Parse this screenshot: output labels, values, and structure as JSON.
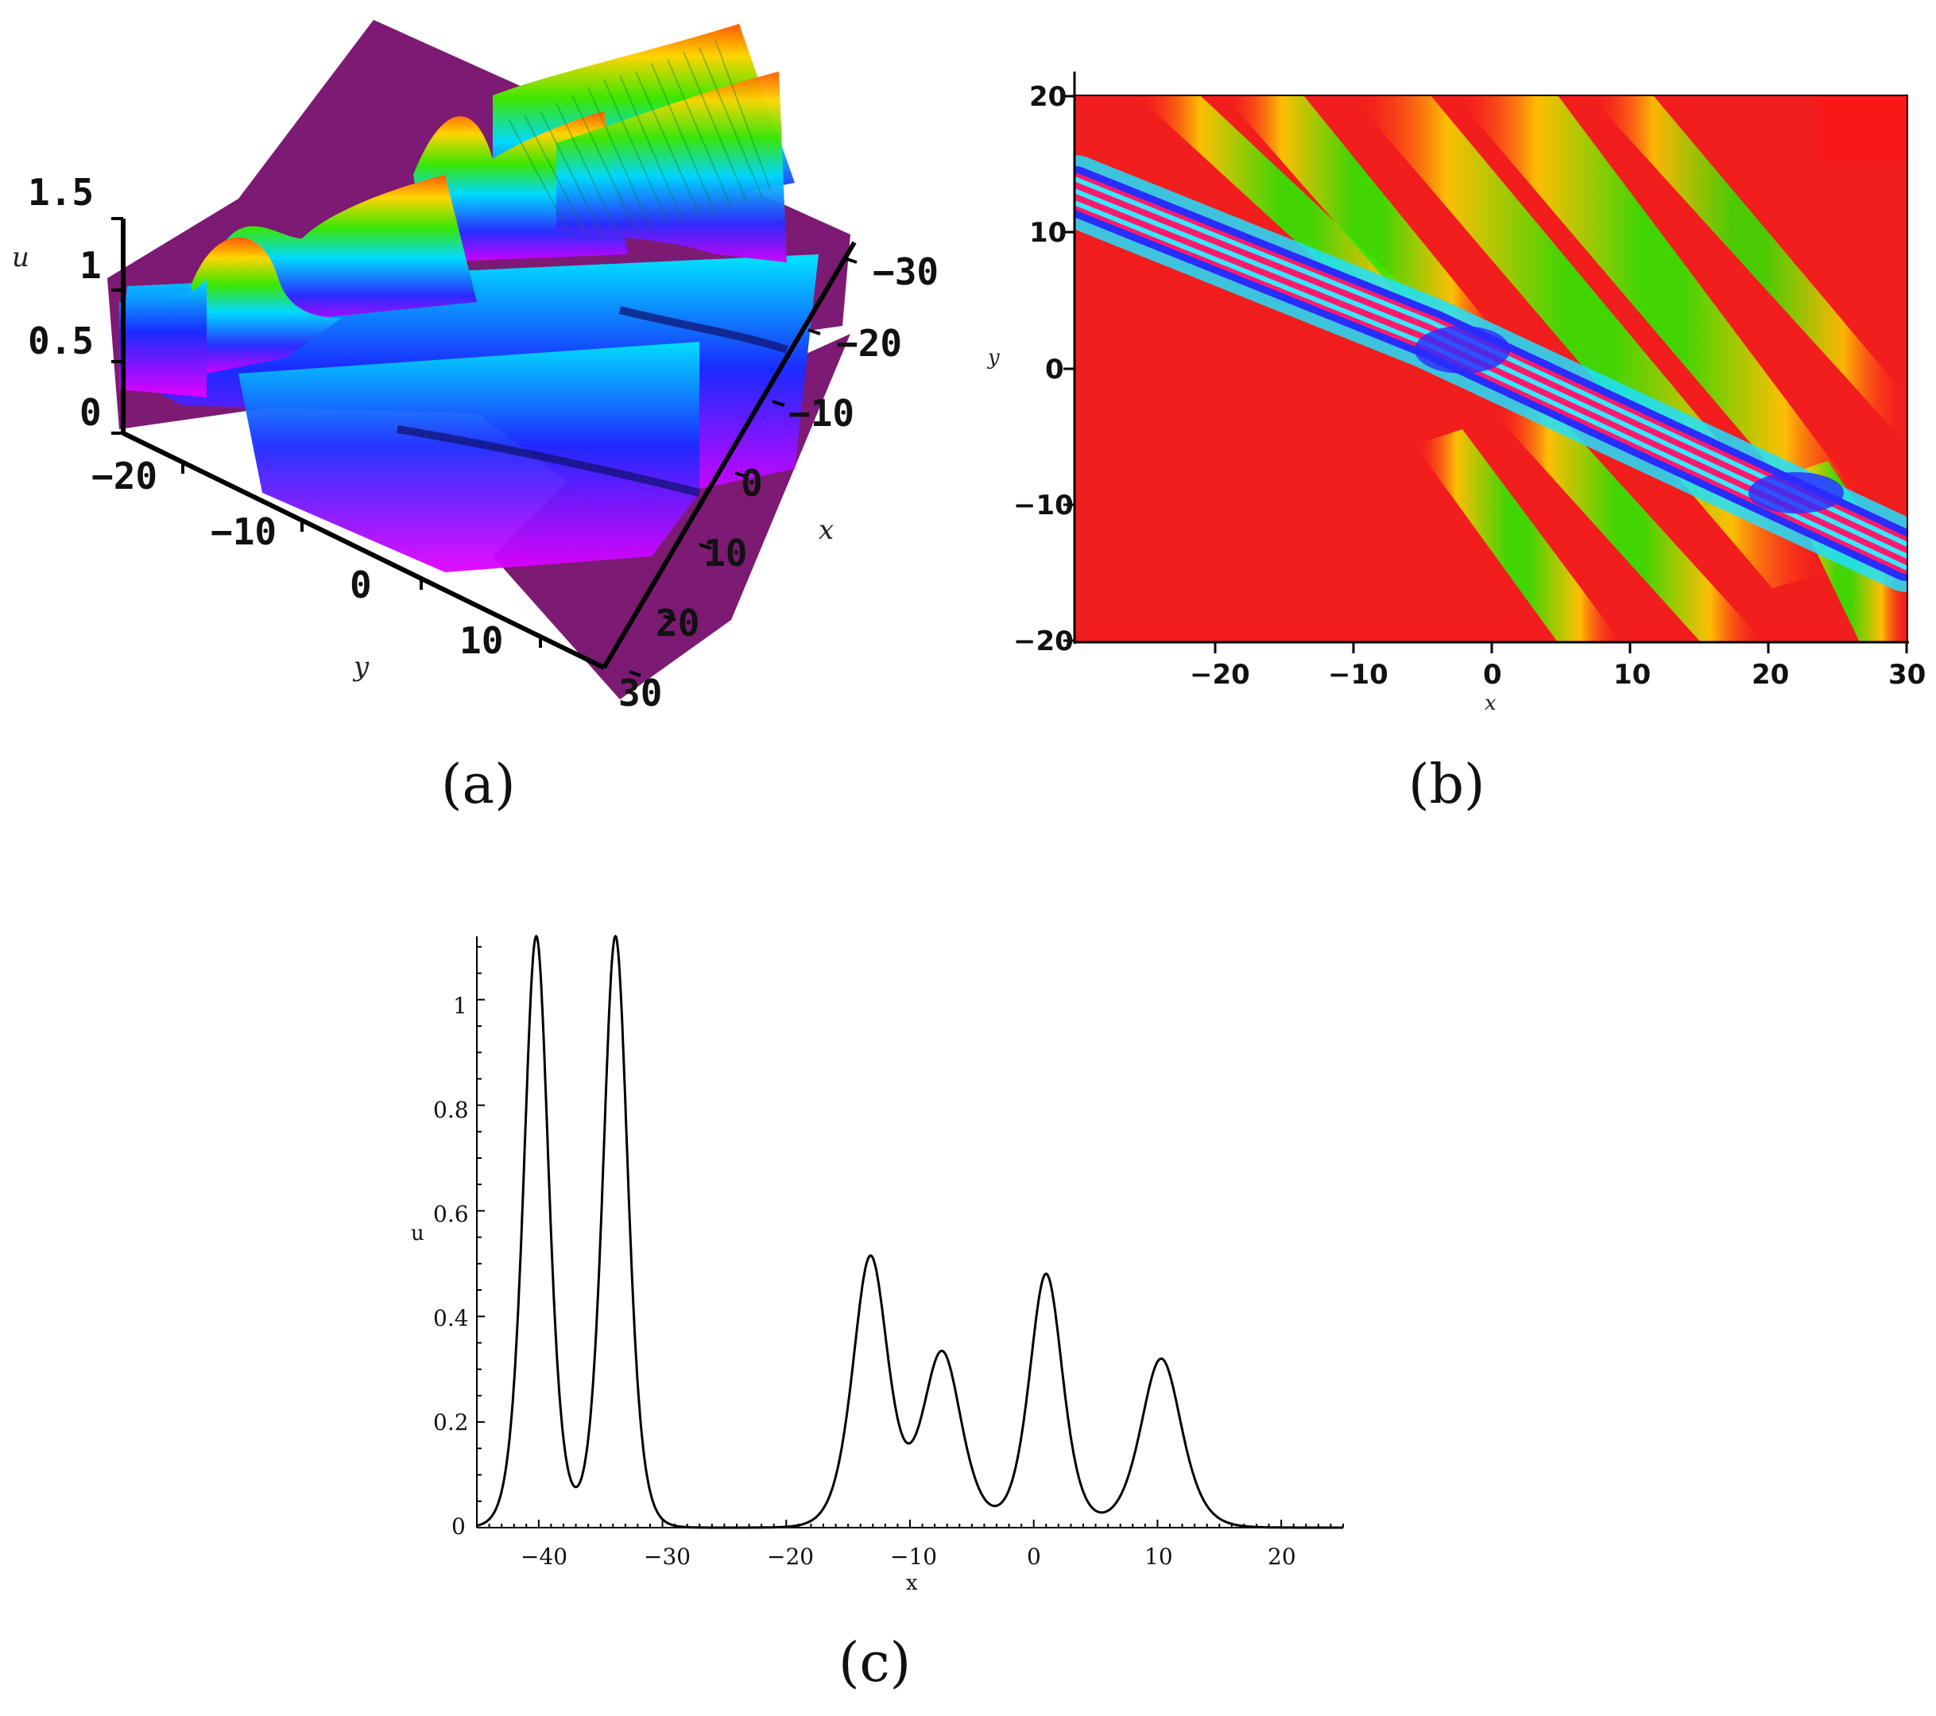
{
  "panels": {
    "a": {
      "label": "(a)"
    },
    "b": {
      "label": "(b)"
    },
    "c": {
      "label": "(c)"
    }
  },
  "chart_data": [
    {
      "panel": "a",
      "type": "surface3d",
      "xlabel": "x",
      "ylabel": "y",
      "zlabel": "u",
      "x_ticks": [
        "−30",
        "−20",
        "−10",
        "0",
        "10",
        "20",
        "30"
      ],
      "y_ticks": [
        "−20",
        "−10",
        "0",
        "10"
      ],
      "z_ticks": [
        "1.5",
        "1",
        "0.5",
        "0"
      ],
      "xlim": [
        -30,
        30
      ],
      "ylim": [
        -20,
        20
      ],
      "zlim": [
        0,
        1.5
      ],
      "colormap": "rainbow"
    },
    {
      "panel": "b",
      "type": "heatmap",
      "xlabel": "x",
      "ylabel": "y",
      "x_ticks": [
        "−20",
        "−10",
        "0",
        "10",
        "20",
        "30"
      ],
      "y_ticks": [
        "20",
        "10",
        "0",
        "−10",
        "−20"
      ],
      "xlim": [
        -30,
        30
      ],
      "ylim": [
        -20,
        20
      ],
      "background_color": "#f21d1d",
      "colormap": "rainbow"
    },
    {
      "panel": "c",
      "type": "line",
      "xlabel": "x",
      "ylabel": "u",
      "xlim": [
        -45,
        25
      ],
      "ylim": [
        0,
        1.12
      ],
      "x_ticks": [
        "−40",
        "−30",
        "−20",
        "−10",
        "0",
        "10",
        "20"
      ],
      "y_ticks": [
        "0",
        "0.2",
        "0.4",
        "0.6",
        "0.8",
        "1"
      ],
      "grid": false,
      "line_color": "#000000",
      "series": [
        {
          "peaks": [
            {
              "x": -40.2,
              "u": 1.12
            },
            {
              "x": -33.8,
              "u": 1.12
            },
            {
              "x": -13.2,
              "u": 0.51
            },
            {
              "x": -7.4,
              "u": 0.33
            },
            {
              "x": 1.0,
              "u": 0.48
            },
            {
              "x": 10.3,
              "u": 0.32
            }
          ],
          "troughs": [
            {
              "x": -37.0,
              "u": 0.08
            },
            {
              "x": -10.2,
              "u": 0.2
            },
            {
              "x": -3.2,
              "u": 0.09
            },
            {
              "x": 5.5,
              "u": 0.05
            }
          ]
        }
      ]
    }
  ]
}
